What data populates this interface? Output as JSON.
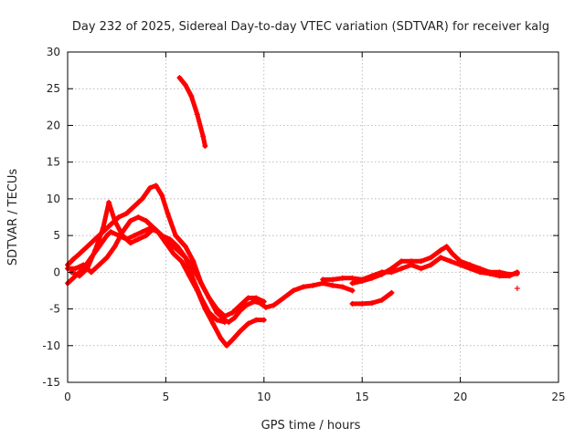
{
  "chart_data": {
    "type": "scatter",
    "title": "Day 232 of 2025, Sidereal Day-to-day VTEC variation (SDTVAR) for receiver kalg",
    "xlabel": "GPS time / hours",
    "ylabel": "SDTVAR / TECUs",
    "xlim": [
      0,
      25
    ],
    "ylim": [
      -15,
      30
    ],
    "xticks": [
      "0",
      "5",
      "10",
      "15",
      "20",
      "25"
    ],
    "yticks": [
      "-15",
      "-10",
      "-5",
      "0",
      "5",
      "10",
      "15",
      "20",
      "25",
      "30"
    ],
    "grid": true,
    "marker": "+",
    "color": "#ff0000",
    "series": [
      {
        "name": "track-a",
        "x": [
          0,
          0.3,
          0.6,
          1.0,
          1.4,
          1.8,
          2.2,
          2.6,
          3.0,
          3.4,
          3.8,
          4.2,
          4.5,
          4.8,
          5.1,
          5.5,
          6.0,
          6.4,
          6.8,
          7.2,
          7.6,
          8.0,
          8.2,
          8.5,
          8.8,
          9.1,
          9.5,
          9.8,
          10.1,
          10.5,
          11.0,
          11.5,
          12.0,
          12.5,
          13.0,
          13.5,
          14.0,
          14.5
        ],
        "y": [
          1,
          1.8,
          2.5,
          3.5,
          4.5,
          5.5,
          6.5,
          7.5,
          8,
          9,
          10,
          11.5,
          11.8,
          10.5,
          8,
          5,
          3.5,
          1.5,
          -1.5,
          -3.5,
          -5.5,
          -6.5,
          -6.8,
          -6.2,
          -5.2,
          -4.5,
          -4,
          -4.2,
          -4.8,
          -4.5,
          -3.5,
          -2.5,
          -2,
          -1.8,
          -1.5,
          -1.8,
          -2,
          -2.5
        ]
      },
      {
        "name": "track-b",
        "x": [
          0,
          0.4,
          0.8,
          1.2,
          1.6,
          2.0,
          2.2,
          2.6,
          3.0,
          3.4,
          3.8,
          4.2,
          4.6,
          5.0,
          5.4,
          5.8,
          6.2,
          6.6,
          7.0,
          7.4,
          7.8,
          8.1,
          8.4,
          8.8,
          9.2,
          9.6,
          10.0
        ],
        "y": [
          -1.5,
          -0.5,
          0.5,
          2,
          3.5,
          5,
          5.5,
          5,
          4.5,
          5,
          5.5,
          6,
          5.5,
          4,
          2.5,
          1.5,
          -0.5,
          -2.5,
          -5,
          -7,
          -9,
          -10,
          -9.2,
          -8,
          -7,
          -6.5,
          -6.5
        ]
      },
      {
        "name": "track-c",
        "x": [
          0.2,
          0.6,
          1.0,
          1.4,
          1.8,
          2.1,
          2.4,
          2.8,
          3.2,
          3.6,
          4.0,
          4.4,
          4.8,
          5.2,
          5.6,
          6.0,
          6.4,
          6.8,
          7.2,
          7.6,
          8.0,
          8.4,
          8.8,
          9.2,
          9.6,
          10.0
        ],
        "y": [
          0,
          -0.5,
          0.5,
          3,
          6,
          9.5,
          7,
          5,
          4,
          4.5,
          5,
          6,
          5,
          4.5,
          3.5,
          2,
          0.5,
          -1.5,
          -3.5,
          -5,
          -6,
          -5.5,
          -4.5,
          -3.5,
          -3.5,
          -4
        ]
      },
      {
        "name": "track-d",
        "x": [
          0,
          0.4,
          0.8,
          1.2,
          1.6,
          2.0,
          2.4,
          2.8,
          3.2,
          3.6,
          4.0,
          4.4,
          4.8,
          5.2,
          5.6,
          6.0,
          6.4,
          6.8,
          7.2,
          7.6,
          8.0
        ],
        "y": [
          0.5,
          0.5,
          1,
          0,
          1,
          2,
          3.5,
          5.5,
          7,
          7.5,
          7,
          6,
          5,
          4,
          3,
          2,
          -1,
          -3.5,
          -5.5,
          -6.5,
          -6.8
        ]
      },
      {
        "name": "track-e",
        "x": [
          5.7,
          6.0,
          6.3,
          6.6,
          6.9,
          7.0
        ],
        "y": [
          26.5,
          25.5,
          24,
          21.5,
          18.5,
          17.2
        ]
      },
      {
        "name": "track-f",
        "x": [
          14.5,
          15.0,
          15.5,
          16.0,
          16.5,
          17.0,
          17.5,
          18.0,
          18.5,
          19.0,
          19.3,
          19.6,
          20.0,
          20.5,
          21.0,
          21.5,
          22.0,
          22.5,
          22.9
        ],
        "y": [
          -1.5,
          -1.2,
          -0.8,
          -0.3,
          0.5,
          1.5,
          1.5,
          1.5,
          2,
          3,
          3.5,
          2.5,
          1.5,
          1,
          0.5,
          0,
          0,
          -0.3,
          -0.2
        ]
      },
      {
        "name": "track-g",
        "x": [
          13.0,
          13.5,
          14.0,
          14.5,
          15.0,
          15.5,
          16.0,
          16.5,
          17.0,
          17.5,
          18.0,
          18.5,
          19.0,
          19.5,
          20.0,
          20.5,
          21.0,
          21.5,
          22.0,
          22.5,
          22.9
        ],
        "y": [
          -1,
          -1,
          -0.8,
          -0.8,
          -1,
          -0.5,
          0,
          0,
          0.5,
          1,
          0.5,
          1,
          2,
          1.5,
          1,
          0.5,
          0,
          -0.2,
          -0.5,
          -0.5,
          0
        ]
      },
      {
        "name": "track-h",
        "x": [
          14.5,
          15.0,
          15.5,
          16.0,
          16.3,
          16.5
        ],
        "y": [
          -4.3,
          -4.3,
          -4.2,
          -3.8,
          -3.2,
          -2.8
        ]
      }
    ],
    "points": [
      {
        "x": 22.9,
        "y": -2.2
      }
    ]
  }
}
